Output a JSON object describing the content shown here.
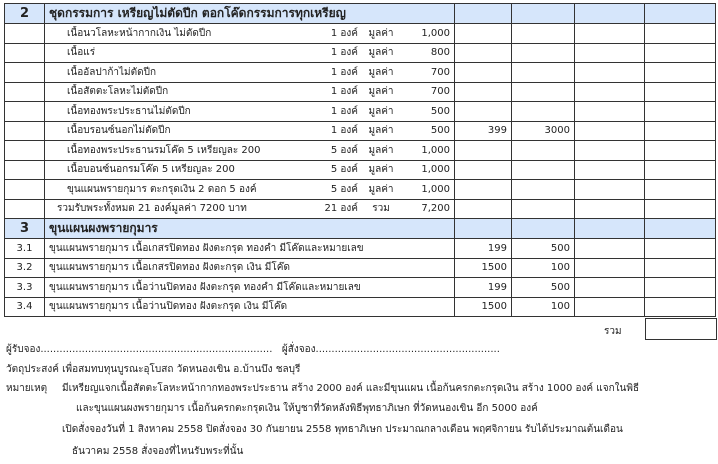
{
  "section2": {
    "number": "2",
    "title": "ชุดกรรมการ เหรียญไม่ตัดปีก ตอกโค๊ดกรรมการทุกเหรียญ",
    "items": [
      {
        "desc": "เนื้อนวโลหะหน้ากากเงิน ไม่ตัดปีก",
        "qty": "1 องค์",
        "unit": "มูลค่า",
        "value": "1,000",
        "c1": "",
        "c2": ""
      },
      {
        "desc": "เนื้อแร่",
        "qty": "1 องค์",
        "unit": "มูลค่า",
        "value": "800",
        "c1": "",
        "c2": ""
      },
      {
        "desc": "เนื้ออัลปาก้าไม่ตัดปีก",
        "qty": "1 องค์",
        "unit": "มูลค่า",
        "value": "700",
        "c1": "",
        "c2": ""
      },
      {
        "desc": "เนื้อสัตตะโลหะไม่ตัดปีก",
        "qty": "1 องค์",
        "unit": "มูลค่า",
        "value": "700",
        "c1": "",
        "c2": ""
      },
      {
        "desc": "เนื้อทองพระประธานไม่ตัดปีก",
        "qty": "1 องค์",
        "unit": "มูลค่า",
        "value": "500",
        "c1": "",
        "c2": ""
      },
      {
        "desc": "เนื้อบรอนซ์นอกไม่ตัดปีก",
        "qty": "1 องค์",
        "unit": "มูลค่า",
        "value": "500",
        "c1": "399",
        "c2": "3000"
      },
      {
        "desc": "เนื้อทองพระประธานรมโค๊ด  5 เหรียญละ 200",
        "qty": "5 องค์",
        "unit": "มูลค่า",
        "value": "1,000",
        "c1": "",
        "c2": ""
      },
      {
        "desc": "เนื้อบอนซ์นอกรมโค๊ด       5 เหรียญละ 200",
        "qty": "5 องค์",
        "unit": "มูลค่า",
        "value": "1,000",
        "c1": "",
        "c2": ""
      },
      {
        "desc": "ขุนแผนพรายกุมาร ตะกรุดเงิน 2 ดอก 5 องค์",
        "qty": "5 องค์",
        "unit": "มูลค่า",
        "value": "1,000",
        "c1": "",
        "c2": ""
      }
    ],
    "total": {
      "desc": "รวมรับพระทั้งหมด 21 องค์มูลค่า 7200 บาท",
      "qty": "21 องค์",
      "unit": "รวม",
      "value": "7,200"
    }
  },
  "section3": {
    "number": "3",
    "title": "ขุนแผนผงพรายกุมาร",
    "items": [
      {
        "no": "3.1",
        "desc": "ขุนแผนพรายกุมาร เนื้อเกสรปิดทอง ฝังตะกรุด ทองคำ มีโค๊ดและหมายเลข",
        "c1": "199",
        "c2": "500"
      },
      {
        "no": "3.2",
        "desc": "ขุนแผนพรายกุมาร เนื้อเกสรปิดทอง ฝังตะกรุด เงิน มีโค๊ด",
        "c1": "1500",
        "c2": "100"
      },
      {
        "no": "3.3",
        "desc": "ขุนแผนพรายกุมาร เนื้อว่านปิดทอง  ฝังตะกรุด ทองคำ มีโค๊ดและหมายเลข",
        "c1": "199",
        "c2": "500"
      },
      {
        "no": "3.4",
        "desc": "ขุนแผนพรายกุมาร เนื้อว่านปิดทอง  ฝังตะกรุด เงิน มีโค๊ด",
        "c1": "1500",
        "c2": "100"
      }
    ]
  },
  "sum_label": "รวม",
  "footer": {
    "receiver": "ผู้รับจอง.........................................................................",
    "orderer": "ผู้สั่งจอง..........................................................",
    "purpose": "วัตถุประสงค์ เพื่อสมทบทุนบูรณะอุโบสถ วัดหนองเขิน อ.บ้านบึง ชลบุรี",
    "note_label": "หมายเหตุ",
    "note_lines": [
      "มีเหรียญแจกเนื้อสัตตะโลหะหน้ากากทองพระประธาน สร้าง 2000 องค์ และมีขุนแผน เนื้อก้นครกตะกรุดเงิน สร้าง 1000 องค์ แจกในพิธี",
      "และขุนแผนผงพรายกุมาร เนื้อก้นครกตะกรุดเงิน ให้บูชาที่วัดหลังพิธีพุทธาภิเษก ที่วัดหนองเขิน อีก 5000 องค์",
      "เปิดสั่งจองวันที่ 1 สิงหาคม 2558 ปิดสั่งจอง 30 กันยายน 2558 พุทธาภิเษก ประมาณกลางเดือน พฤศจิกายน รับได้ประมาณต้นเดือน",
      "ธันวาคม 2558  สั่งจองที่ไหนรับพระที่นั้น"
    ]
  }
}
